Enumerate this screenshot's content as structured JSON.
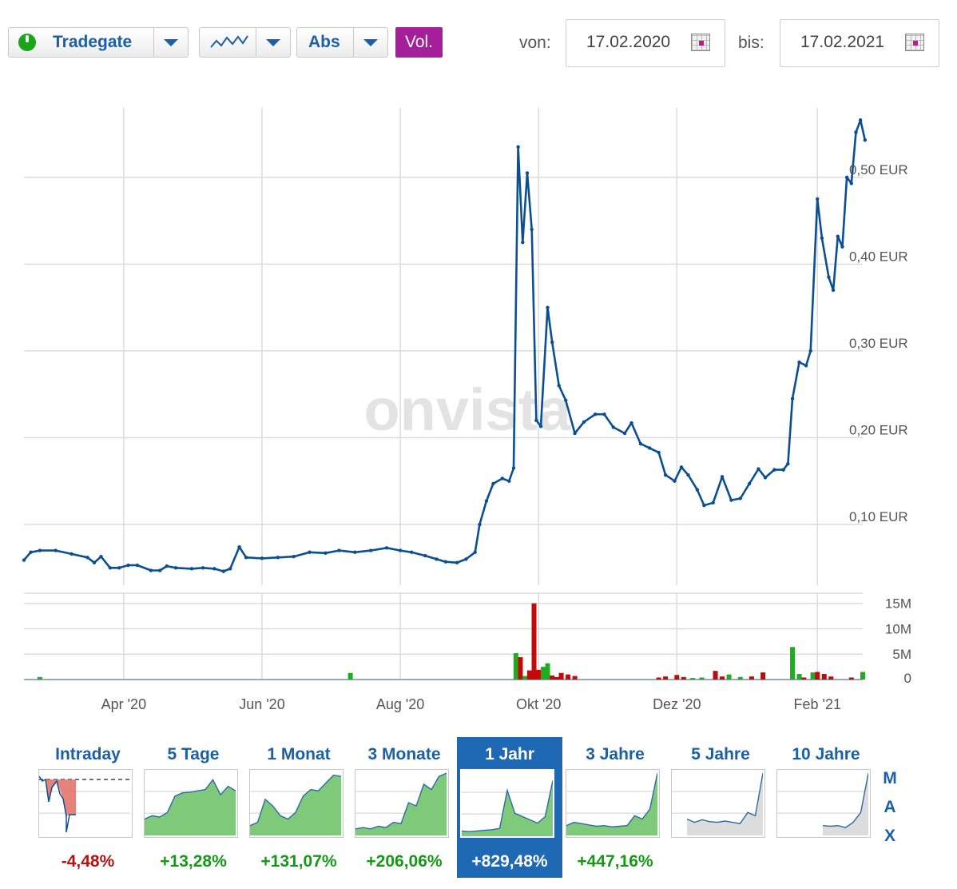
{
  "toolbar": {
    "exchange_label": "Tradegate",
    "mode_label": "Abs",
    "volume_label": "Vol.",
    "from_label": "von:",
    "from_date": "17.02.2020",
    "to_label": "bis:",
    "to_date": "17.02.2021"
  },
  "watermark": "onvista",
  "colors": {
    "line": "#0b4f92",
    "vol_up": "#1fad1f",
    "vol_down": "#c20a0a",
    "accent": "#a51f9a",
    "tab_active": "#1f68b4",
    "positive": "#139a13",
    "negative": "#b51313"
  },
  "chart_data": {
    "type": "line",
    "ylim": [
      0.03,
      0.58
    ],
    "y_ticks": [
      0.1,
      0.2,
      0.3,
      0.4,
      0.5
    ],
    "y_tick_labels": [
      "0,10 EUR",
      "0,20 EUR",
      "0,30 EUR",
      "0,40 EUR",
      "0,50 EUR"
    ],
    "x_ticks": [
      {
        "date": "2020-04-01",
        "label": "Apr '20"
      },
      {
        "date": "2020-06-01",
        "label": "Jun '20"
      },
      {
        "date": "2020-08-01",
        "label": "Aug '20"
      },
      {
        "date": "2020-10-01",
        "label": "Okt '20"
      },
      {
        "date": "2020-12-01",
        "label": "Dez '20"
      },
      {
        "date": "2021-02-01",
        "label": "Feb '21"
      }
    ],
    "x_range": [
      "2020-02-17",
      "2021-02-21"
    ],
    "price": [
      [
        "2020-02-17",
        0.059
      ],
      [
        "2020-02-20",
        0.068
      ],
      [
        "2020-02-24",
        0.07
      ],
      [
        "2020-03-02",
        0.07
      ],
      [
        "2020-03-09",
        0.066
      ],
      [
        "2020-03-16",
        0.062
      ],
      [
        "2020-03-19",
        0.056
      ],
      [
        "2020-03-22",
        0.063
      ],
      [
        "2020-03-26",
        0.05
      ],
      [
        "2020-03-30",
        0.05
      ],
      [
        "2020-04-03",
        0.053
      ],
      [
        "2020-04-07",
        0.053
      ],
      [
        "2020-04-13",
        0.047
      ],
      [
        "2020-04-17",
        0.047
      ],
      [
        "2020-04-20",
        0.052
      ],
      [
        "2020-04-24",
        0.05
      ],
      [
        "2020-05-01",
        0.049
      ],
      [
        "2020-05-06",
        0.05
      ],
      [
        "2020-05-11",
        0.049
      ],
      [
        "2020-05-15",
        0.046
      ],
      [
        "2020-05-18",
        0.049
      ],
      [
        "2020-05-22",
        0.074
      ],
      [
        "2020-05-25",
        0.062
      ],
      [
        "2020-06-01",
        0.061
      ],
      [
        "2020-06-08",
        0.062
      ],
      [
        "2020-06-15",
        0.063
      ],
      [
        "2020-06-22",
        0.068
      ],
      [
        "2020-06-29",
        0.067
      ],
      [
        "2020-07-05",
        0.07
      ],
      [
        "2020-07-12",
        0.068
      ],
      [
        "2020-07-19",
        0.07
      ],
      [
        "2020-07-26",
        0.073
      ],
      [
        "2020-08-01",
        0.07
      ],
      [
        "2020-08-06",
        0.068
      ],
      [
        "2020-08-12",
        0.064
      ],
      [
        "2020-08-17",
        0.06
      ],
      [
        "2020-08-21",
        0.057
      ],
      [
        "2020-08-26",
        0.056
      ],
      [
        "2020-08-30",
        0.06
      ],
      [
        "2020-09-03",
        0.068
      ],
      [
        "2020-09-05",
        0.1
      ],
      [
        "2020-09-08",
        0.127
      ],
      [
        "2020-09-11",
        0.147
      ],
      [
        "2020-09-15",
        0.153
      ],
      [
        "2020-09-18",
        0.15
      ],
      [
        "2020-09-20",
        0.165
      ],
      [
        "2020-09-22",
        0.535
      ],
      [
        "2020-09-24",
        0.425
      ],
      [
        "2020-09-26",
        0.505
      ],
      [
        "2020-09-28",
        0.44
      ],
      [
        "2020-09-30",
        0.22
      ],
      [
        "2020-10-02",
        0.213
      ],
      [
        "2020-10-05",
        0.35
      ],
      [
        "2020-10-07",
        0.31
      ],
      [
        "2020-10-10",
        0.26
      ],
      [
        "2020-10-13",
        0.243
      ],
      [
        "2020-10-17",
        0.205
      ],
      [
        "2020-10-21",
        0.218
      ],
      [
        "2020-10-26",
        0.227
      ],
      [
        "2020-10-30",
        0.227
      ],
      [
        "2020-11-03",
        0.212
      ],
      [
        "2020-11-08",
        0.205
      ],
      [
        "2020-11-11",
        0.217
      ],
      [
        "2020-11-15",
        0.193
      ],
      [
        "2020-11-19",
        0.188
      ],
      [
        "2020-11-23",
        0.183
      ],
      [
        "2020-11-26",
        0.157
      ],
      [
        "2020-11-30",
        0.15
      ],
      [
        "2020-12-03",
        0.166
      ],
      [
        "2020-12-06",
        0.157
      ],
      [
        "2020-12-10",
        0.14
      ],
      [
        "2020-12-13",
        0.122
      ],
      [
        "2020-12-17",
        0.125
      ],
      [
        "2020-12-21",
        0.155
      ],
      [
        "2020-12-25",
        0.128
      ],
      [
        "2020-12-29",
        0.13
      ],
      [
        "2021-01-02",
        0.147
      ],
      [
        "2021-01-06",
        0.164
      ],
      [
        "2021-01-09",
        0.154
      ],
      [
        "2021-01-13",
        0.163
      ],
      [
        "2021-01-17",
        0.163
      ],
      [
        "2021-01-19",
        0.17
      ],
      [
        "2021-01-21",
        0.245
      ],
      [
        "2021-01-24",
        0.287
      ],
      [
        "2021-01-27",
        0.283
      ],
      [
        "2021-01-29",
        0.3
      ],
      [
        "2021-02-01",
        0.475
      ],
      [
        "2021-02-03",
        0.43
      ],
      [
        "2021-02-06",
        0.385
      ],
      [
        "2021-02-08",
        0.37
      ],
      [
        "2021-02-10",
        0.432
      ],
      [
        "2021-02-12",
        0.42
      ],
      [
        "2021-02-14",
        0.5
      ],
      [
        "2021-02-16",
        0.493
      ],
      [
        "2021-02-18",
        0.552
      ],
      [
        "2021-02-20",
        0.566
      ],
      [
        "2021-02-22",
        0.543
      ]
    ],
    "volume_ylim": [
      0,
      17
    ],
    "volume_ticks": [
      0,
      5,
      10,
      15
    ],
    "volume_tick_labels": [
      "0",
      "5M",
      "10M",
      "15M"
    ],
    "volume": [
      {
        "date": "2020-02-24",
        "v": 0.5,
        "up": true
      },
      {
        "date": "2020-07-10",
        "v": 1.3,
        "up": true
      },
      {
        "date": "2020-09-21",
        "v": 5.2,
        "up": true
      },
      {
        "date": "2020-09-23",
        "v": 4.4,
        "up": false
      },
      {
        "date": "2020-09-25",
        "v": 0.7,
        "up": true
      },
      {
        "date": "2020-09-27",
        "v": 1.8,
        "up": false
      },
      {
        "date": "2020-09-29",
        "v": 15.0,
        "up": false
      },
      {
        "date": "2020-10-01",
        "v": 1.9,
        "up": false
      },
      {
        "date": "2020-10-03",
        "v": 2.5,
        "up": true
      },
      {
        "date": "2020-10-05",
        "v": 3.2,
        "up": true
      },
      {
        "date": "2020-10-07",
        "v": 0.8,
        "up": false
      },
      {
        "date": "2020-10-09",
        "v": 0.5,
        "up": false
      },
      {
        "date": "2020-10-11",
        "v": 1.3,
        "up": false
      },
      {
        "date": "2020-10-14",
        "v": 1.0,
        "up": false
      },
      {
        "date": "2020-10-17",
        "v": 0.7,
        "up": false
      },
      {
        "date": "2020-11-23",
        "v": 0.4,
        "up": false
      },
      {
        "date": "2020-11-26",
        "v": 0.6,
        "up": false
      },
      {
        "date": "2020-12-01",
        "v": 0.9,
        "up": false
      },
      {
        "date": "2020-12-04",
        "v": 0.5,
        "up": false
      },
      {
        "date": "2020-12-08",
        "v": 0.3,
        "up": true
      },
      {
        "date": "2020-12-12",
        "v": 0.4,
        "up": true
      },
      {
        "date": "2020-12-18",
        "v": 1.7,
        "up": false
      },
      {
        "date": "2020-12-21",
        "v": 0.6,
        "up": false
      },
      {
        "date": "2020-12-24",
        "v": 1.0,
        "up": true
      },
      {
        "date": "2020-12-29",
        "v": 0.5,
        "up": true
      },
      {
        "date": "2021-01-03",
        "v": 0.6,
        "up": false
      },
      {
        "date": "2021-01-08",
        "v": 1.4,
        "up": false
      },
      {
        "date": "2021-01-21",
        "v": 6.4,
        "up": true
      },
      {
        "date": "2021-01-24",
        "v": 1.1,
        "up": true
      },
      {
        "date": "2021-01-26",
        "v": 0.4,
        "up": false
      },
      {
        "date": "2021-01-30",
        "v": 1.4,
        "up": true
      },
      {
        "date": "2021-02-01",
        "v": 1.5,
        "up": false
      },
      {
        "date": "2021-02-04",
        "v": 1.1,
        "up": false
      },
      {
        "date": "2021-02-07",
        "v": 0.6,
        "up": false
      },
      {
        "date": "2021-02-16",
        "v": 0.4,
        "up": false
      },
      {
        "date": "2021-02-21",
        "v": 1.5,
        "up": true
      }
    ]
  },
  "periods": [
    {
      "label": "Intraday",
      "change": "-4,48%",
      "positive": false,
      "active": false,
      "shape": "intraday"
    },
    {
      "label": "5 Tage",
      "change": "+13,28%",
      "positive": true,
      "active": false,
      "shape": [
        0.25,
        0.3,
        0.28,
        0.35,
        0.6,
        0.65,
        0.66,
        0.68,
        0.7,
        0.85,
        0.62,
        0.75,
        0.68
      ]
    },
    {
      "label": "1 Monat",
      "change": "+131,07%",
      "positive": true,
      "active": false,
      "shape": [
        0.15,
        0.2,
        0.55,
        0.45,
        0.3,
        0.25,
        0.35,
        0.6,
        0.7,
        0.68,
        0.8,
        0.92,
        0.9
      ]
    },
    {
      "label": "3 Monate",
      "change": "+206,06%",
      "positive": true,
      "active": false,
      "shape": [
        0.1,
        0.12,
        0.1,
        0.14,
        0.12,
        0.2,
        0.18,
        0.5,
        0.45,
        0.78,
        0.7,
        0.9,
        0.95
      ]
    },
    {
      "label": "1 Jahr",
      "change": "+829,48%",
      "positive": true,
      "active": true,
      "shape": [
        0.08,
        0.07,
        0.08,
        0.09,
        0.1,
        0.12,
        0.7,
        0.35,
        0.3,
        0.25,
        0.2,
        0.3,
        0.85
      ]
    },
    {
      "label": "3 Jahre",
      "change": "+447,16%",
      "positive": true,
      "active": false,
      "shape": [
        0.15,
        0.2,
        0.18,
        0.16,
        0.14,
        0.15,
        0.13,
        0.14,
        0.15,
        0.3,
        0.25,
        0.4,
        0.95
      ]
    },
    {
      "label": "5 Jahre",
      "change": "",
      "positive": true,
      "active": false,
      "shape": [
        null,
        null,
        0.25,
        0.2,
        0.24,
        0.21,
        0.2,
        0.22,
        0.2,
        0.18,
        0.35,
        0.3,
        0.95
      ]
    },
    {
      "label": "10 Jahre",
      "change": "",
      "positive": true,
      "active": false,
      "shape": [
        null,
        null,
        null,
        null,
        null,
        null,
        0.15,
        0.14,
        0.15,
        0.12,
        0.2,
        0.35,
        0.95
      ]
    }
  ],
  "max_label": [
    "M",
    "A",
    "X"
  ]
}
